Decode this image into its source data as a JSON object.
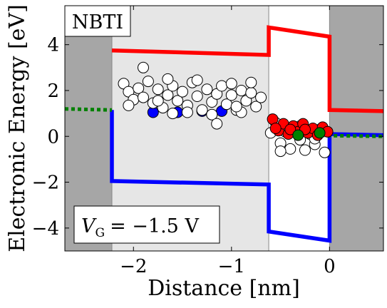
{
  "chart_data": {
    "type": "scatter",
    "xlabel": "Distance [nm]",
    "ylabel": "Electronic Energy [eV]",
    "xlim": [
      -2.7,
      0.55
    ],
    "ylim": [
      -5.0,
      5.7
    ],
    "x_ticks": [
      -2,
      -1,
      0
    ],
    "x_tick_labels": [
      "−2",
      "−1",
      "0"
    ],
    "y_ticks": [
      -4,
      -2,
      0,
      2,
      4
    ],
    "y_tick_labels": [
      "−4",
      "−2",
      "0",
      "2",
      "4"
    ],
    "grid": false,
    "legend": "none",
    "annotations": {
      "title_box": "NBTI",
      "bias_symbol": "V",
      "bias_subscript": "G",
      "bias_value": "= −1.5 V"
    },
    "regions": [
      {
        "name": "gate",
        "x": [
          -2.7,
          -2.22
        ],
        "color": "#a6a6a6"
      },
      {
        "name": "oxide",
        "x": [
          -2.22,
          -0.62
        ],
        "color": "#e6e6e6"
      },
      {
        "name": "interfacial-layer",
        "x": [
          -0.62,
          0.0
        ],
        "color": "#ffffff"
      },
      {
        "name": "substrate",
        "x": [
          0.0,
          0.55
        ],
        "color": "#a6a6a6"
      }
    ],
    "series": [
      {
        "name": "",
        "kind": "line",
        "color": "#ff0000",
        "points": [
          [
            -2.22,
            3.75
          ],
          [
            -0.62,
            3.55
          ],
          [
            -0.62,
            4.75
          ],
          [
            0.0,
            4.35
          ],
          [
            0.0,
            1.15
          ],
          [
            0.55,
            1.1
          ]
        ]
      },
      {
        "name": "",
        "kind": "line",
        "color": "#0000ff",
        "points": [
          [
            -2.22,
            1.15
          ],
          [
            -2.22,
            -1.95
          ],
          [
            -0.62,
            -2.1
          ],
          [
            -0.62,
            -4.15
          ],
          [
            0.0,
            -4.55
          ],
          [
            0.0,
            0.1
          ],
          [
            0.55,
            0.05
          ]
        ]
      },
      {
        "name": "",
        "kind": "dotted",
        "color": "#008000",
        "points": [
          [
            -2.7,
            1.2
          ],
          [
            -2.22,
            1.15
          ]
        ]
      },
      {
        "name": "",
        "kind": "dotted",
        "color": "#008000",
        "points": [
          [
            -0.35,
            0.05
          ],
          [
            0.55,
            0.0
          ]
        ]
      },
      {
        "name": "",
        "kind": "scatter",
        "color": "#0000ff",
        "points": [
          [
            -1.8,
            1.05
          ],
          [
            -1.55,
            1.05
          ],
          [
            -1.3,
            1.1
          ],
          [
            -1.1,
            1.1
          ]
        ]
      },
      {
        "name": "",
        "kind": "scatter",
        "color": "#ffffff",
        "points": [
          [
            -2.1,
            2.3
          ],
          [
            -2.05,
            1.95
          ],
          [
            -2.0,
            1.6
          ],
          [
            -1.95,
            2.1
          ],
          [
            -1.9,
            1.7
          ],
          [
            -1.85,
            2.4
          ],
          [
            -1.8,
            1.45
          ],
          [
            -1.75,
            2.05
          ],
          [
            -1.7,
            1.25
          ],
          [
            -1.65,
            1.8
          ],
          [
            -1.6,
            2.2
          ],
          [
            -1.55,
            1.55
          ],
          [
            -1.5,
            1.95
          ],
          [
            -1.45,
            1.35
          ],
          [
            -1.4,
            2.35
          ],
          [
            -1.35,
            1.75
          ],
          [
            -1.3,
            1.15
          ],
          [
            -1.25,
            2.05
          ],
          [
            -1.2,
            1.5
          ],
          [
            -1.15,
            1.85
          ],
          [
            -1.1,
            2.2
          ],
          [
            -1.05,
            1.4
          ],
          [
            -1.0,
            1.8
          ],
          [
            -0.95,
            1.15
          ],
          [
            -0.9,
            2.0
          ],
          [
            -0.85,
            1.55
          ],
          [
            -0.8,
            1.9
          ],
          [
            -0.75,
            1.3
          ],
          [
            -0.7,
            1.7
          ],
          [
            -1.6,
            1.0
          ],
          [
            -1.2,
            0.95
          ],
          [
            -0.9,
            1.05
          ],
          [
            -2.05,
            1.35
          ],
          [
            -1.75,
            1.55
          ],
          [
            -1.45,
            1.05
          ],
          [
            -1.0,
            2.3
          ],
          [
            -1.35,
            2.45
          ],
          [
            -1.9,
            3.0
          ],
          [
            -1.65,
            2.5
          ],
          [
            -0.8,
            2.35
          ],
          [
            -1.15,
            0.55
          ],
          [
            -0.95,
            1.3
          ],
          [
            -0.55,
            0.6
          ],
          [
            -0.5,
            -0.3
          ],
          [
            -0.45,
            0.2
          ],
          [
            -0.4,
            -0.55
          ],
          [
            -0.35,
            0.35
          ],
          [
            -0.3,
            -0.15
          ],
          [
            -0.25,
            -0.6
          ],
          [
            -0.2,
            0.1
          ],
          [
            -0.15,
            -0.35
          ],
          [
            -0.1,
            0.3
          ],
          [
            -0.05,
            -0.7
          ],
          [
            -0.5,
            -0.65
          ],
          [
            -0.3,
            0.45
          ],
          [
            -0.15,
            -0.1
          ],
          [
            -0.6,
            0.15
          ]
        ]
      },
      {
        "name": "",
        "kind": "scatter",
        "color": "#ff0000",
        "points": [
          [
            -0.58,
            0.75
          ],
          [
            -0.52,
            0.25
          ],
          [
            -0.47,
            0.55
          ],
          [
            -0.42,
            0.1
          ],
          [
            -0.37,
            0.45
          ],
          [
            -0.32,
            0.2
          ],
          [
            -0.27,
            0.55
          ],
          [
            -0.22,
            0.15
          ],
          [
            -0.17,
            0.35
          ],
          [
            -0.12,
            0.05
          ],
          [
            -0.07,
            0.4
          ],
          [
            -0.02,
            0.2
          ],
          [
            -0.55,
            0.35
          ],
          [
            -0.4,
            0.3
          ],
          [
            -0.25,
            0.3
          ]
        ]
      },
      {
        "name": "",
        "kind": "scatter",
        "color": "#008000",
        "points": [
          [
            -0.1,
            0.15
          ],
          [
            -0.32,
            0.05
          ]
        ]
      }
    ]
  }
}
